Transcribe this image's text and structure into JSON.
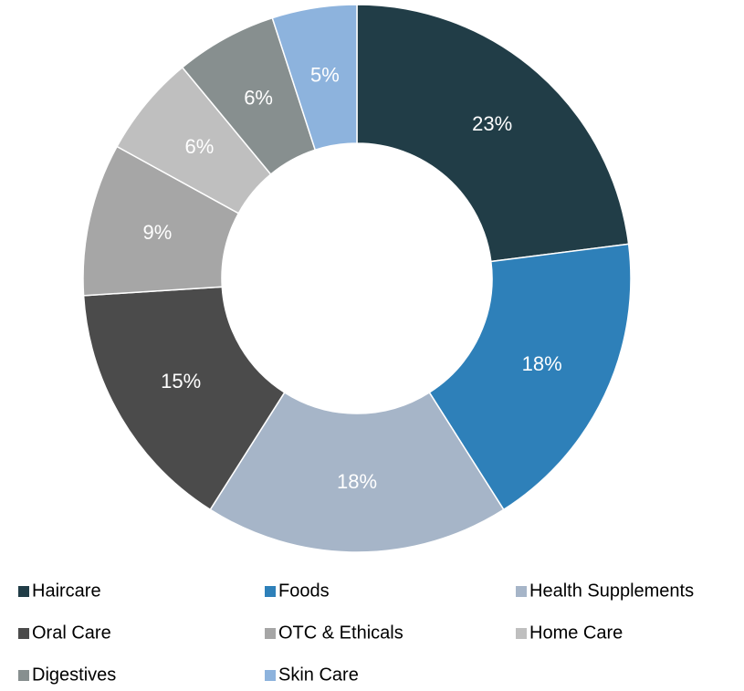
{
  "chart_data": {
    "type": "donut",
    "categories": [
      "Haircare",
      "Foods",
      "Health Supplements",
      "Oral Care",
      "OTC & Ethicals",
      "Home Care",
      "Digestives",
      "Skin Care"
    ],
    "values": [
      23,
      18,
      18,
      15,
      9,
      6,
      6,
      5
    ],
    "value_labels": [
      "23%",
      "18%",
      "18%",
      "15%",
      "9%",
      "6%",
      "6%",
      "5%"
    ],
    "colors": [
      "#213d47",
      "#2e80b9",
      "#a6b5c8",
      "#4b4b4b",
      "#a6a6a6",
      "#bfbfbf",
      "#878f8f",
      "#8db3dd"
    ],
    "legend": "bottom"
  }
}
